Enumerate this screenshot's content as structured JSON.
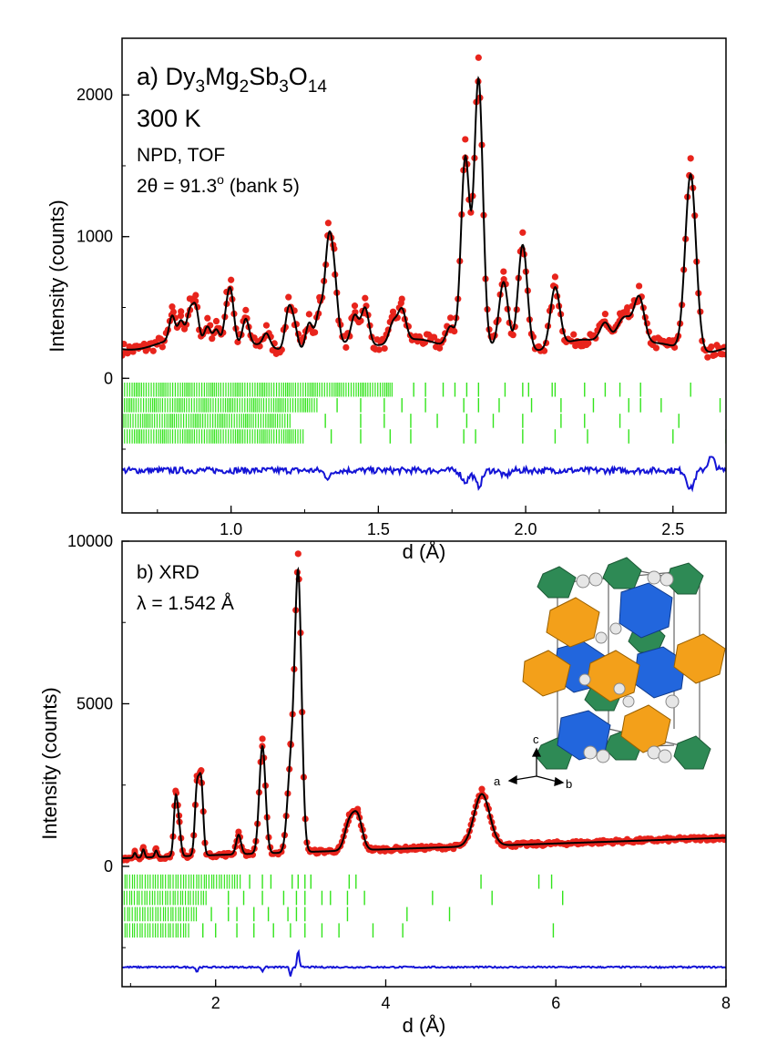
{
  "chart_data": [
    {
      "id": "panel-a",
      "type": "scatter",
      "title_prefix": "a) ",
      "formula_parts": [
        {
          "t": "Dy",
          "sub": false
        },
        {
          "t": "3",
          "sub": true
        },
        {
          "t": "Mg",
          "sub": false
        },
        {
          "t": "2",
          "sub": true
        },
        {
          "t": "Sb",
          "sub": false
        },
        {
          "t": "3",
          "sub": true
        },
        {
          "t": "O",
          "sub": false
        },
        {
          "t": "14",
          "sub": true
        }
      ],
      "annotations": [
        "300 K",
        "NPD, TOF"
      ],
      "angle_prefix": "2θ = 91.3",
      "angle_sup": "o",
      "angle_suffix": " (bank 5)",
      "xlabel": "d (Å)",
      "ylabel": "Intensity (counts)",
      "xlim": [
        0.63,
        2.68
      ],
      "ylim": [
        -950,
        2400
      ],
      "xticks": [
        1.0,
        1.5,
        2.0,
        2.5
      ],
      "xtick_labels": [
        "1.0",
        "1.5",
        "2.0",
        "2.5"
      ],
      "yticks": [
        0,
        1000,
        2000
      ],
      "ytick_labels": [
        "0",
        "1000",
        "2000"
      ],
      "background": 230,
      "peaks": [
        {
          "d": 0.8,
          "h": 170,
          "w": 0.006
        },
        {
          "d": 0.83,
          "h": 130,
          "w": 0.006
        },
        {
          "d": 0.86,
          "h": 190,
          "w": 0.006
        },
        {
          "d": 0.88,
          "h": 230,
          "w": 0.006
        },
        {
          "d": 0.92,
          "h": 120,
          "w": 0.006
        },
        {
          "d": 0.95,
          "h": 110,
          "w": 0.006
        },
        {
          "d": 0.985,
          "h": 190,
          "w": 0.006
        },
        {
          "d": 1.0,
          "h": 320,
          "w": 0.006
        },
        {
          "d": 1.05,
          "h": 180,
          "w": 0.006
        },
        {
          "d": 1.12,
          "h": 90,
          "w": 0.006
        },
        {
          "d": 1.195,
          "h": 280,
          "w": 0.006
        },
        {
          "d": 1.215,
          "h": 170,
          "w": 0.006
        },
        {
          "d": 1.265,
          "h": 200,
          "w": 0.006
        },
        {
          "d": 1.3,
          "h": 260,
          "w": 0.006
        },
        {
          "d": 1.33,
          "h": 650,
          "w": 0.006
        },
        {
          "d": 1.35,
          "h": 420,
          "w": 0.006
        },
        {
          "d": 1.42,
          "h": 200,
          "w": 0.006
        },
        {
          "d": 1.455,
          "h": 260,
          "w": 0.006
        },
        {
          "d": 1.55,
          "h": 140,
          "w": 0.006
        },
        {
          "d": 1.58,
          "h": 220,
          "w": 0.006
        },
        {
          "d": 1.745,
          "h": 150,
          "w": 0.006
        },
        {
          "d": 1.795,
          "h": 1350,
          "w": 0.006
        },
        {
          "d": 1.84,
          "h": 1900,
          "w": 0.006
        },
        {
          "d": 1.925,
          "h": 460,
          "w": 0.006
        },
        {
          "d": 1.99,
          "h": 740,
          "w": 0.006
        },
        {
          "d": 2.1,
          "h": 420,
          "w": 0.006
        },
        {
          "d": 2.27,
          "h": 140,
          "w": 0.006
        },
        {
          "d": 2.32,
          "h": 110,
          "w": 0.006
        },
        {
          "d": 2.345,
          "h": 140,
          "w": 0.006
        },
        {
          "d": 2.385,
          "h": 330,
          "w": 0.006
        },
        {
          "d": 2.56,
          "h": 1250,
          "w": 0.006
        }
      ],
      "tick_rows": [
        {
          "y": -30,
          "dmax": 1.55,
          "sparse": [
            1.62,
            1.66,
            1.72,
            1.76,
            1.8,
            1.84,
            1.93,
            1.99,
            2.01,
            2.09,
            2.1,
            2.2,
            2.27,
            2.32,
            2.39,
            2.56
          ]
        },
        {
          "y": -140,
          "dmax": 1.3,
          "sparse": [
            1.36,
            1.44,
            1.52,
            1.58,
            1.66,
            1.79,
            1.84,
            1.91,
            2.02,
            2.12,
            2.23,
            2.35,
            2.39,
            2.46,
            2.66
          ]
        },
        {
          "y": -250,
          "dmax": 1.2,
          "sparse": [
            1.32,
            1.44,
            1.52,
            1.61,
            1.7,
            1.8,
            1.89,
            1.99,
            2.12,
            2.2,
            2.32,
            2.52
          ]
        },
        {
          "y": -360,
          "dmax": 1.25,
          "sparse": [
            1.34,
            1.44,
            1.54,
            1.61,
            1.79,
            1.83,
            1.99,
            2.1,
            2.21,
            2.35,
            2.5,
            2.68
          ]
        }
      ],
      "diff_offset": -650,
      "diff_dips": [
        {
          "d": 1.795,
          "a": 80
        },
        {
          "d": 1.84,
          "a": 110
        },
        {
          "d": 1.93,
          "a": 40
        },
        {
          "d": 2.56,
          "a": 130
        },
        {
          "d": 2.63,
          "a": -90
        },
        {
          "d": 1.33,
          "a": 50
        }
      ],
      "colors": {
        "obs": "#e8241c",
        "calc": "#000000",
        "ticks": "#33e41c",
        "diff": "#1414d6"
      }
    },
    {
      "id": "panel-b",
      "type": "scatter",
      "title": "b) XRD",
      "wavelength_label": "λ = 1.542 Å",
      "xlabel": "d (Å)",
      "ylabel": "Intensity (counts)",
      "xlim": [
        0.9,
        8.0
      ],
      "ylim": [
        -3700,
        10000
      ],
      "xticks": [
        2,
        4,
        6,
        8
      ],
      "xtick_labels": [
        "2",
        "4",
        "6",
        "8"
      ],
      "yticks": [
        0,
        5000,
        10000
      ],
      "ytick_labels": [
        "0",
        "5000",
        "10000"
      ],
      "inset_axes": [
        "c",
        "a",
        "b"
      ],
      "background_start": 250,
      "background_end": 950,
      "peaks": [
        {
          "d": 1.05,
          "h": 150,
          "w": 0.008
        },
        {
          "d": 1.15,
          "h": 250,
          "w": 0.008
        },
        {
          "d": 1.3,
          "h": 200,
          "w": 0.008
        },
        {
          "d": 1.53,
          "h": 1700,
          "w": 0.01
        },
        {
          "d": 1.57,
          "h": 800,
          "w": 0.01
        },
        {
          "d": 1.78,
          "h": 2000,
          "w": 0.01
        },
        {
          "d": 1.83,
          "h": 2200,
          "w": 0.01
        },
        {
          "d": 2.27,
          "h": 600,
          "w": 0.01
        },
        {
          "d": 2.55,
          "h": 3300,
          "w": 0.012
        },
        {
          "d": 2.88,
          "h": 2400,
          "w": 0.012
        },
        {
          "d": 2.97,
          "h": 8500,
          "w": 0.012
        },
        {
          "d": 3.57,
          "h": 800,
          "w": 0.014
        },
        {
          "d": 3.67,
          "h": 1000,
          "w": 0.014
        },
        {
          "d": 5.13,
          "h": 1600,
          "w": 0.018
        }
      ],
      "tick_rows": [
        {
          "y": -250,
          "dmax": 2.3,
          "sparse": [
            2.4,
            2.55,
            2.65,
            2.9,
            2.97,
            3.05,
            3.12,
            3.57,
            3.65,
            5.12,
            5.8,
            5.95
          ]
        },
        {
          "y": -750,
          "dmax": 1.9,
          "sparse": [
            2.15,
            2.33,
            2.55,
            2.8,
            2.95,
            3.05,
            3.25,
            3.35,
            3.55,
            3.75,
            4.55,
            5.25,
            6.08
          ]
        },
        {
          "y": -1250,
          "dmax": 1.8,
          "sparse": [
            1.95,
            2.15,
            2.25,
            2.45,
            2.62,
            2.85,
            2.95,
            3.05,
            3.55,
            4.25,
            4.75
          ]
        },
        {
          "y": -1750,
          "dmax": 1.7,
          "sparse": [
            1.85,
            2.0,
            2.25,
            2.45,
            2.68,
            2.88,
            3.05,
            3.25,
            3.45,
            3.85,
            4.2,
            5.97
          ]
        }
      ],
      "diff_offset": -3100,
      "diff_dips": [
        {
          "d": 2.97,
          "a": -550
        },
        {
          "d": 2.88,
          "a": 300
        },
        {
          "d": 1.78,
          "a": 150
        },
        {
          "d": 2.55,
          "a": 120
        }
      ],
      "colors": {
        "obs": "#e8241c",
        "calc": "#000000",
        "ticks": "#33e41c",
        "diff": "#1414d6"
      }
    }
  ]
}
